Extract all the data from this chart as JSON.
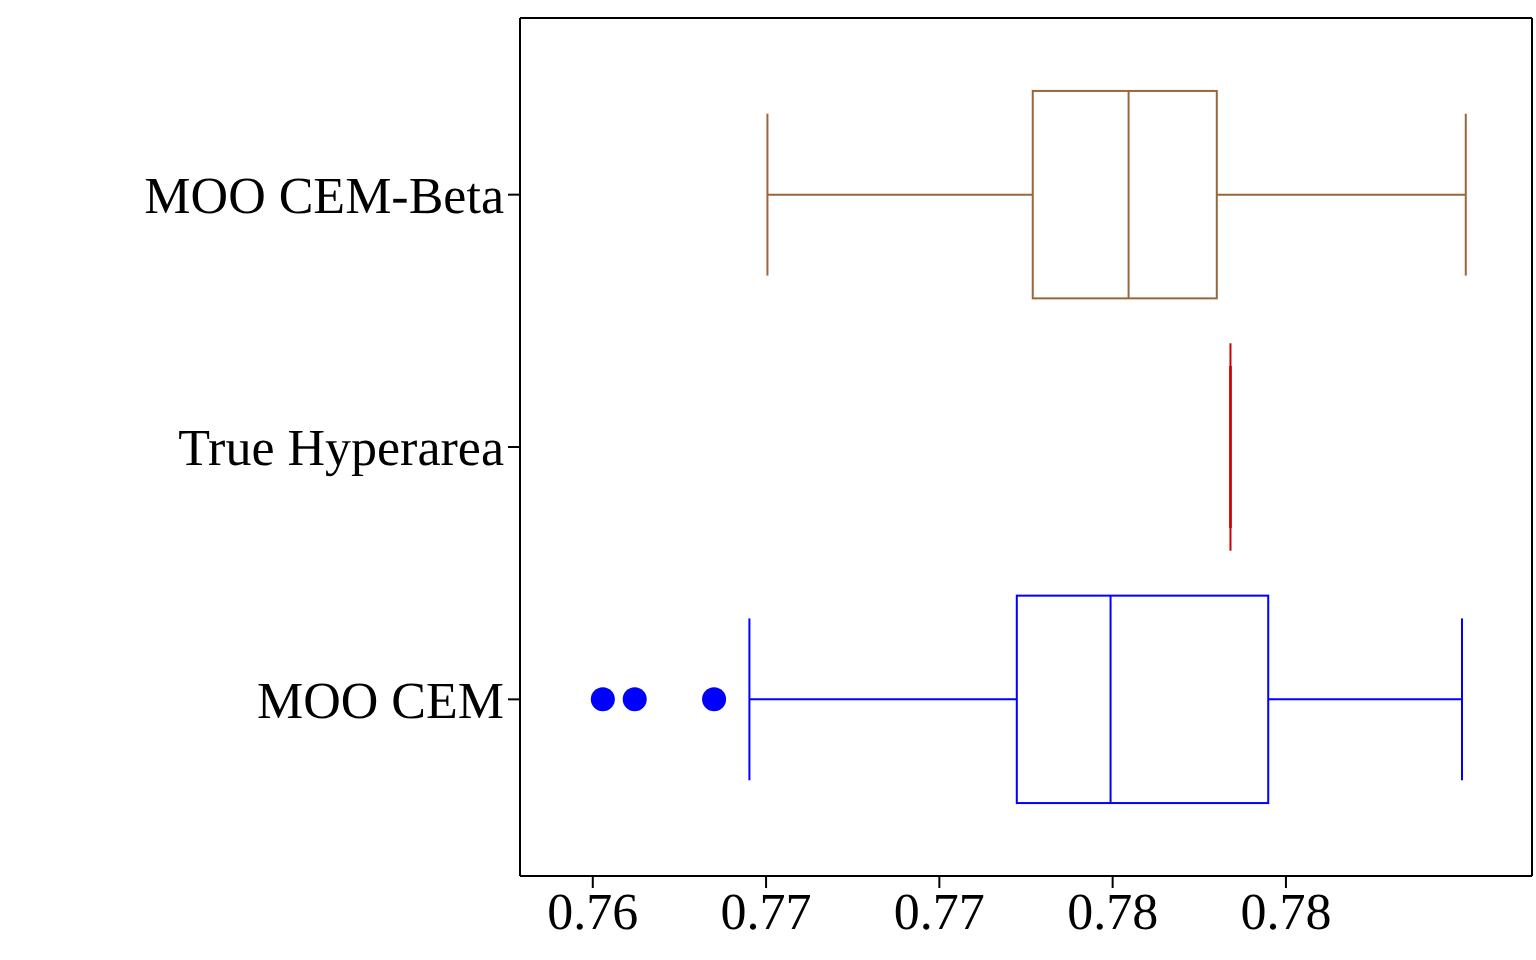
{
  "chart_data": {
    "type": "box",
    "orientation": "horizontal",
    "categories": [
      "MOO CEM-Beta",
      "True Hyperarea",
      "MOO CEM"
    ],
    "colors": [
      "#99663a",
      "#cc0000",
      "#0000ff"
    ],
    "boxes": [
      {
        "low": 0.76506,
        "q1": 0.7727,
        "median": 0.77546,
        "q3": 0.778,
        "high": 0.78517
      },
      {
        "low": 0.7784,
        "q1": 0.7784,
        "median": 0.7784,
        "q3": 0.7784,
        "high": 0.7784
      },
      {
        "low": 0.76454,
        "q1": 0.77224,
        "median": 0.77494,
        "q3": 0.77948,
        "high": 0.78506,
        "outliers": [
          0.76029,
          0.76121,
          0.7635
        ]
      }
    ],
    "xlim": [
      0.7579,
      0.7871
    ],
    "xticks": [
      {
        "value": 0.76,
        "label": "0.76"
      },
      {
        "value": 0.765,
        "label": "0.77"
      },
      {
        "value": 0.77,
        "label": "0.77"
      },
      {
        "value": 0.775,
        "label": "0.78"
      },
      {
        "value": 0.78,
        "label": "0.78"
      }
    ]
  }
}
